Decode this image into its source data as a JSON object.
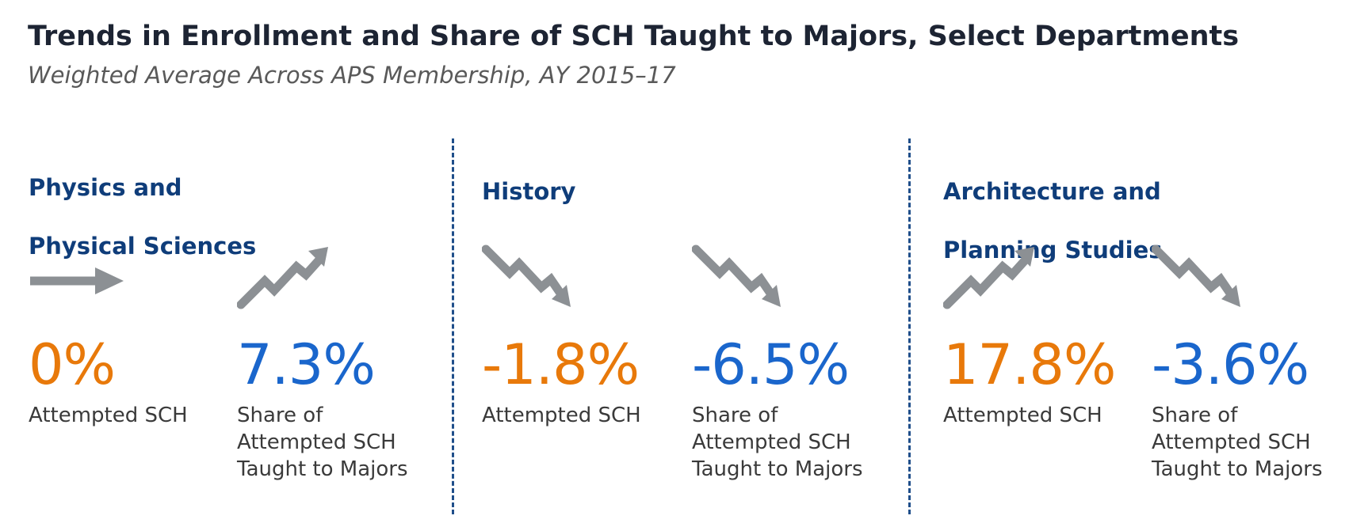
{
  "header": {
    "title": "Trends in Enrollment and Share of SCH Taught to Majors, Select Departments",
    "subtitle": "Weighted Average Across APS Membership, AY 2015–17"
  },
  "colors": {
    "title": "#1d2433",
    "department": "#0f3d7a",
    "attempted_value": "#e8790a",
    "share_value": "#1a66cc",
    "icon": "#8c9094",
    "divider": "#1f4e8a"
  },
  "departments": [
    {
      "name_line1": "Physics and",
      "name_line2": "Physical Sciences",
      "attempted": {
        "value": "0%",
        "trend": "flat",
        "icon": "arrow-right-icon",
        "label_lines": [
          "Attempted SCH"
        ]
      },
      "share": {
        "value": "7.3%",
        "trend": "up",
        "icon": "trend-up-icon",
        "label_lines": [
          "Share of",
          "Attempted SCH",
          "Taught to Majors"
        ]
      }
    },
    {
      "name_line1": "History",
      "name_line2": "",
      "attempted": {
        "value": "-1.8%",
        "trend": "down",
        "icon": "trend-down-icon",
        "label_lines": [
          "Attempted SCH"
        ]
      },
      "share": {
        "value": "-6.5%",
        "trend": "down",
        "icon": "trend-down-icon",
        "label_lines": [
          "Share of",
          "Attempted SCH",
          "Taught to Majors"
        ]
      }
    },
    {
      "name_line1": "Architecture and",
      "name_line2": "Planning Studies",
      "attempted": {
        "value": "17.8%",
        "trend": "up",
        "icon": "trend-up-icon",
        "label_lines": [
          "Attempted SCH"
        ]
      },
      "share": {
        "value": "-3.6%",
        "trend": "down",
        "icon": "trend-down-icon",
        "label_lines": [
          "Share of",
          "Attempted SCH",
          "Taught to Majors"
        ]
      }
    }
  ]
}
